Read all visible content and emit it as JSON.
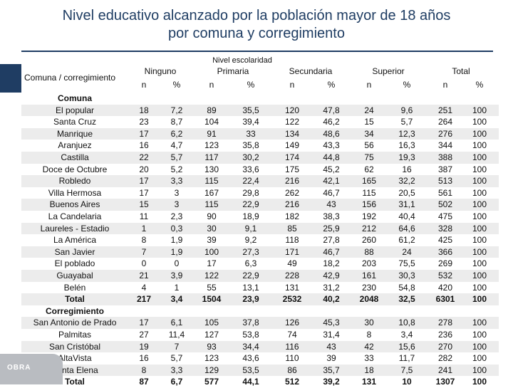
{
  "title_line1": "Nivel educativo alcanzado por la población mayor de 18 años",
  "title_line2": "por comuna y corregimiento",
  "nivel_label": "Nivel escolaridad",
  "header": {
    "comuna": "Comuna / corregimiento",
    "ninguno": "Ninguno",
    "primaria": "Primaria",
    "secundaria": "Secundaria",
    "superior": "Superior",
    "total": "Total",
    "n": "n",
    "pct": "%"
  },
  "logo_text": "OBRA",
  "rows": [
    {
      "type": "section",
      "name": "Comuna"
    },
    {
      "name": "El popular",
      "v": [
        "18",
        "7,2",
        "89",
        "35,5",
        "120",
        "47,8",
        "24",
        "9,6",
        "251",
        "100"
      ]
    },
    {
      "name": "Santa Cruz",
      "v": [
        "23",
        "8,7",
        "104",
        "39,4",
        "122",
        "46,2",
        "15",
        "5,7",
        "264",
        "100"
      ]
    },
    {
      "name": "Manrique",
      "v": [
        "17",
        "6,2",
        "91",
        "33",
        "134",
        "48,6",
        "34",
        "12,3",
        "276",
        "100"
      ]
    },
    {
      "name": "Aranjuez",
      "v": [
        "16",
        "4,7",
        "123",
        "35,8",
        "149",
        "43,3",
        "56",
        "16,3",
        "344",
        "100"
      ]
    },
    {
      "name": "Castilla",
      "v": [
        "22",
        "5,7",
        "117",
        "30,2",
        "174",
        "44,8",
        "75",
        "19,3",
        "388",
        "100"
      ]
    },
    {
      "name": "Doce de Octubre",
      "v": [
        "20",
        "5,2",
        "130",
        "33,6",
        "175",
        "45,2",
        "62",
        "16",
        "387",
        "100"
      ]
    },
    {
      "name": "Robledo",
      "v": [
        "17",
        "3,3",
        "115",
        "22,4",
        "216",
        "42,1",
        "165",
        "32,2",
        "513",
        "100"
      ]
    },
    {
      "name": "Villa Hermosa",
      "v": [
        "17",
        "3",
        "167",
        "29,8",
        "262",
        "46,7",
        "115",
        "20,5",
        "561",
        "100"
      ]
    },
    {
      "name": "Buenos Aires",
      "v": [
        "15",
        "3",
        "115",
        "22,9",
        "216",
        "43",
        "156",
        "31,1",
        "502",
        "100"
      ]
    },
    {
      "name": "La Candelaria",
      "v": [
        "11",
        "2,3",
        "90",
        "18,9",
        "182",
        "38,3",
        "192",
        "40,4",
        "475",
        "100"
      ]
    },
    {
      "name": "Laureles - Estadio",
      "v": [
        "1",
        "0,3",
        "30",
        "9,1",
        "85",
        "25,9",
        "212",
        "64,6",
        "328",
        "100"
      ]
    },
    {
      "name": "La América",
      "v": [
        "8",
        "1,9",
        "39",
        "9,2",
        "118",
        "27,8",
        "260",
        "61,2",
        "425",
        "100"
      ]
    },
    {
      "name": "San Javier",
      "v": [
        "7",
        "1,9",
        "100",
        "27,3",
        "171",
        "46,7",
        "88",
        "24",
        "366",
        "100"
      ]
    },
    {
      "name": "El poblado",
      "v": [
        "0",
        "0",
        "17",
        "6,3",
        "49",
        "18,2",
        "203",
        "75,5",
        "269",
        "100"
      ]
    },
    {
      "name": "Guayabal",
      "v": [
        "21",
        "3,9",
        "122",
        "22,9",
        "228",
        "42,9",
        "161",
        "30,3",
        "532",
        "100"
      ]
    },
    {
      "name": "Belén",
      "v": [
        "4",
        "1",
        "55",
        "13,1",
        "131",
        "31,2",
        "230",
        "54,8",
        "420",
        "100"
      ]
    },
    {
      "type": "total",
      "name": "Total",
      "v": [
        "217",
        "3,4",
        "1504",
        "23,9",
        "2532",
        "40,2",
        "2048",
        "32,5",
        "6301",
        "100"
      ]
    },
    {
      "type": "section",
      "name": "Corregimiento"
    },
    {
      "name": "San Antonio de Prado",
      "v": [
        "17",
        "6,1",
        "105",
        "37,8",
        "126",
        "45,3",
        "30",
        "10,8",
        "278",
        "100"
      ]
    },
    {
      "name": "Palmitas",
      "v": [
        "27",
        "11,4",
        "127",
        "53,8",
        "74",
        "31,4",
        "8",
        "3,4",
        "236",
        "100"
      ]
    },
    {
      "name": "San Cristóbal",
      "v": [
        "19",
        "7",
        "93",
        "34,4",
        "116",
        "43",
        "42",
        "15,6",
        "270",
        "100"
      ]
    },
    {
      "name": "AltaVista",
      "v": [
        "16",
        "5,7",
        "123",
        "43,6",
        "110",
        "39",
        "33",
        "11,7",
        "282",
        "100"
      ]
    },
    {
      "name": "Santa Elena",
      "v": [
        "8",
        "3,3",
        "129",
        "53,5",
        "86",
        "35,7",
        "18",
        "7,5",
        "241",
        "100"
      ]
    },
    {
      "type": "total",
      "name": "Total",
      "v": [
        "87",
        "6,7",
        "577",
        "44,1",
        "512",
        "39,2",
        "131",
        "10",
        "1307",
        "100"
      ]
    }
  ]
}
